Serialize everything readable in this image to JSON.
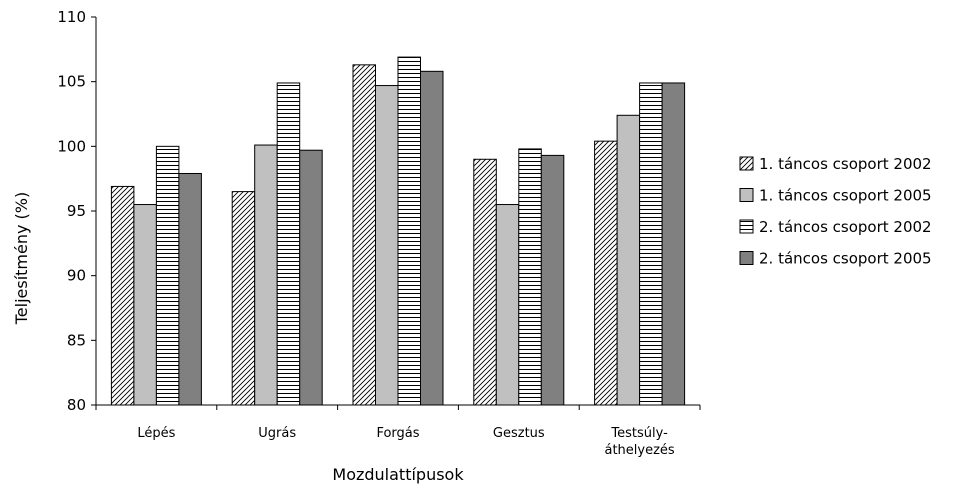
{
  "chart_data": {
    "type": "bar",
    "title": "",
    "xlabel": "Mozdulattípusok",
    "ylabel": "Teljesítmény (%)",
    "ylim": [
      80,
      110
    ],
    "yticks": [
      80,
      85,
      90,
      95,
      100,
      105,
      110
    ],
    "categories": [
      "Lépés",
      "Ugrás",
      "Forgás",
      "Gesztus",
      "Testsúly-\náthelyezés"
    ],
    "series": [
      {
        "name": "1. táncos csoport 2002",
        "pattern": "diagonal-hatch",
        "color": "#ffffff",
        "values": [
          96.9,
          96.5,
          106.3,
          99.0,
          100.4
        ]
      },
      {
        "name": "1. táncos csoport 2005",
        "pattern": "solid",
        "color": "#c0c0c0",
        "values": [
          95.5,
          100.1,
          104.7,
          95.5,
          102.4
        ]
      },
      {
        "name": "2. táncos csoport 2002",
        "pattern": "horizontal-lines",
        "color": "#ffffff",
        "values": [
          100.0,
          104.9,
          106.9,
          99.8,
          104.9
        ]
      },
      {
        "name": "2. táncos csoport 2005",
        "pattern": "solid",
        "color": "#808080",
        "values": [
          97.9,
          99.7,
          105.8,
          99.3,
          104.9
        ]
      }
    ],
    "legend_position": "right",
    "grid": false
  }
}
